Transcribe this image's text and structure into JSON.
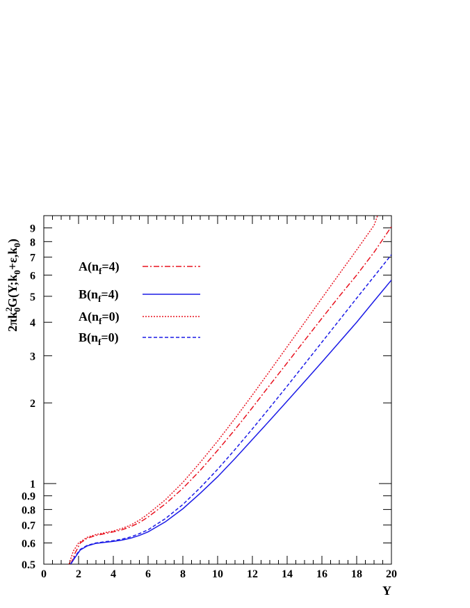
{
  "chart_data": {
    "type": "line",
    "title": "",
    "xlabel": "Y",
    "ylabel_parts": [
      "2πk",
      "2",
      "0",
      "G(Y;k",
      "0",
      "+ε,k",
      "0",
      ")"
    ],
    "xlim": [
      0,
      20
    ],
    "ylim": [
      0.5,
      10
    ],
    "y_scale": "log",
    "grid": false,
    "legend_position": "top-left",
    "x_ticks": [
      0,
      2,
      4,
      6,
      8,
      10,
      12,
      14,
      16,
      18,
      20
    ],
    "x_tick_labels": [
      "0",
      "2",
      "4",
      "6",
      "8",
      "10",
      "12",
      "14",
      "16",
      "18",
      "20"
    ],
    "y_ticks": [
      0.5,
      0.6,
      0.7,
      0.8,
      0.9,
      1,
      2,
      3,
      4,
      5,
      6,
      7,
      8,
      9
    ],
    "y_tick_labels": [
      "0.5",
      "0.6",
      "0.7",
      "0.8",
      "0.9",
      "1",
      "2",
      "3",
      "4",
      "5",
      "6",
      "7",
      "8",
      "9"
    ],
    "series": [
      {
        "legend": [
          "A(n",
          "f",
          "=4)"
        ],
        "color": "#e8121f",
        "dash": "8 3 2 3",
        "x": [
          1.55,
          1.8,
          2.1,
          2.5,
          3,
          3.5,
          4,
          4.5,
          5,
          5.5,
          6,
          7,
          8,
          9,
          10,
          11,
          12,
          13,
          14,
          15,
          16,
          17,
          18,
          19,
          20
        ],
        "y": [
          0.5,
          0.55,
          0.6,
          0.625,
          0.64,
          0.65,
          0.66,
          0.672,
          0.69,
          0.715,
          0.75,
          0.84,
          0.96,
          1.12,
          1.33,
          1.59,
          1.92,
          2.33,
          2.82,
          3.42,
          4.14,
          5.0,
          6.0,
          7.3,
          9.1
        ]
      },
      {
        "legend": [
          "B(n",
          "f",
          "=4)"
        ],
        "color": "#1a1ae6",
        "dash": "",
        "x": [
          1.55,
          1.8,
          2.1,
          2.5,
          3,
          3.5,
          4,
          4.5,
          5,
          5.5,
          6,
          7,
          8,
          9,
          10,
          11,
          12,
          13,
          14,
          15,
          16,
          17,
          18,
          19,
          20
        ],
        "y": [
          0.5,
          0.53,
          0.565,
          0.585,
          0.598,
          0.603,
          0.608,
          0.615,
          0.625,
          0.64,
          0.66,
          0.72,
          0.805,
          0.92,
          1.06,
          1.24,
          1.46,
          1.72,
          2.03,
          2.4,
          2.84,
          3.37,
          4.0,
          4.8,
          5.75
        ]
      },
      {
        "legend": [
          "A(n",
          "f",
          "=0)"
        ],
        "color": "#e8121f",
        "dash": "2 2",
        "x": [
          1.45,
          1.7,
          2.0,
          2.5,
          3,
          3.5,
          4,
          4.5,
          5,
          5.5,
          6,
          7,
          8,
          9,
          10,
          11,
          12,
          13,
          14,
          15,
          16,
          17,
          18,
          19,
          19.2
        ],
        "y": [
          0.5,
          0.56,
          0.6,
          0.63,
          0.645,
          0.655,
          0.665,
          0.68,
          0.7,
          0.73,
          0.77,
          0.87,
          1.01,
          1.2,
          1.44,
          1.75,
          2.14,
          2.63,
          3.24,
          3.99,
          4.92,
          6.06,
          7.45,
          9.2,
          10.0
        ]
      },
      {
        "legend": [
          "B(n",
          "f",
          "=0)"
        ],
        "color": "#1a1ae6",
        "dash": "5 3",
        "x": [
          1.55,
          1.8,
          2.1,
          2.5,
          3,
          3.5,
          4,
          4.5,
          5,
          5.5,
          6,
          7,
          8,
          9,
          10,
          11,
          12,
          13,
          14,
          15,
          16,
          17,
          18,
          19,
          20
        ],
        "y": [
          0.5,
          0.535,
          0.568,
          0.588,
          0.6,
          0.606,
          0.612,
          0.62,
          0.632,
          0.65,
          0.672,
          0.74,
          0.835,
          0.965,
          1.13,
          1.34,
          1.6,
          1.92,
          2.31,
          2.79,
          3.37,
          4.07,
          4.92,
          5.93,
          7.15
        ]
      }
    ]
  }
}
